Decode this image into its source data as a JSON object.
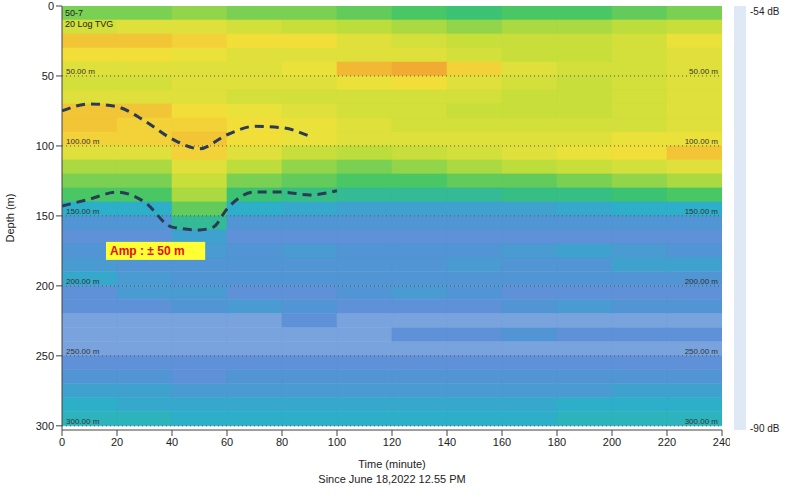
{
  "chart_data": {
    "type": "heatmap",
    "x_label": "Time (minute)",
    "y_label": "Depth (m)",
    "subtitle": "Since June 18,2022 12.55 PM",
    "corner_texts": [
      "50-7",
      "20 Log TVG"
    ],
    "xlim": [
      0,
      240
    ],
    "xticks": [
      0,
      20,
      40,
      60,
      80,
      100,
      120,
      140,
      160,
      180,
      200,
      220,
      240
    ],
    "ylim": [
      0,
      303
    ],
    "yticks": [
      0,
      50,
      100,
      150,
      200,
      250,
      300
    ],
    "depth_markers": [
      {
        "value": 50,
        "label": "50.00 m"
      },
      {
        "value": 100,
        "label": "100.00 m"
      },
      {
        "value": 150,
        "label": "150.00 m"
      },
      {
        "value": 200,
        "label": "200.00 m"
      },
      {
        "value": 250,
        "label": "250.00 m"
      },
      {
        "value": 300,
        "label": "300.00 m"
      }
    ],
    "heatmap": {
      "x_bins": [
        0,
        20,
        40,
        60,
        80,
        100,
        120,
        140,
        160,
        180,
        200,
        220,
        240
      ],
      "y_bins": [
        0,
        10,
        20,
        30,
        40,
        50,
        60,
        70,
        80,
        90,
        100,
        110,
        120,
        130,
        140,
        150,
        160,
        170,
        180,
        190,
        200,
        210,
        220,
        230,
        240,
        250,
        260,
        270,
        280,
        290,
        300
      ],
      "cells": [
        [
          -72,
          -72,
          -71,
          -72,
          -72,
          -73,
          -74,
          -75,
          -74,
          -74,
          -73,
          -72
        ],
        [
          -67,
          -66,
          -66,
          -67,
          -68,
          -69,
          -70,
          -71,
          -70,
          -70,
          -69,
          -68
        ],
        [
          -62,
          -62,
          -63,
          -64,
          -64,
          -66,
          -67,
          -68,
          -68,
          -68,
          -67,
          -65
        ],
        [
          -64,
          -64,
          -65,
          -66,
          -66,
          -66,
          -66,
          -67,
          -68,
          -68,
          -67,
          -66
        ],
        [
          -66,
          -66,
          -66,
          -66,
          -65,
          -61,
          -60,
          -63,
          -66,
          -67,
          -67,
          -66
        ],
        [
          -67,
          -67,
          -66,
          -66,
          -66,
          -65,
          -64,
          -66,
          -67,
          -68,
          -67,
          -66
        ],
        [
          -66,
          -66,
          -66,
          -67,
          -67,
          -67,
          -67,
          -67,
          -68,
          -68,
          -67,
          -66
        ],
        [
          -62,
          -62,
          -64,
          -65,
          -66,
          -67,
          -67,
          -68,
          -68,
          -68,
          -67,
          -66
        ],
        [
          -62,
          -63,
          -63,
          -64,
          -65,
          -66,
          -67,
          -67,
          -67,
          -67,
          -67,
          -66
        ],
        [
          -63,
          -63,
          -62,
          -64,
          -65,
          -66,
          -66,
          -66,
          -66,
          -66,
          -65,
          -65
        ],
        [
          -66,
          -66,
          -63,
          -66,
          -68,
          -69,
          -68,
          -67,
          -66,
          -65,
          -64,
          -62
        ],
        [
          -70,
          -70,
          -66,
          -69,
          -71,
          -72,
          -71,
          -70,
          -69,
          -68,
          -67,
          -66
        ],
        [
          -72,
          -72,
          -68,
          -72,
          -73,
          -74,
          -74,
          -73,
          -73,
          -72,
          -71,
          -70
        ],
        [
          -74,
          -74,
          -70,
          -75,
          -76,
          -77,
          -77,
          -77,
          -76,
          -76,
          -75,
          -74
        ],
        [
          -80,
          -80,
          -73,
          -80,
          -81,
          -82,
          -82,
          -82,
          -82,
          -81,
          -80,
          -80
        ],
        [
          -84,
          -84,
          -77,
          -84,
          -84,
          -84,
          -84,
          -84,
          -84,
          -84,
          -84,
          -84
        ],
        [
          -85,
          -85,
          -82,
          -85,
          -85,
          -85,
          -85,
          -85,
          -85,
          -85,
          -85,
          -85
        ],
        [
          -84,
          -84,
          -83,
          -84,
          -83,
          -84,
          -84,
          -84,
          -83,
          -82,
          -83,
          -84
        ],
        [
          -83,
          -84,
          -84,
          -84,
          -84,
          -84,
          -84,
          -83,
          -84,
          -84,
          -82,
          -82
        ],
        [
          -81,
          -83,
          -84,
          -84,
          -84,
          -84,
          -84,
          -84,
          -84,
          -84,
          -84,
          -84
        ],
        [
          -85,
          -83,
          -83,
          -85,
          -85,
          -84,
          -83,
          -84,
          -85,
          -85,
          -85,
          -85
        ],
        [
          -85,
          -85,
          -84,
          -83,
          -84,
          -85,
          -85,
          -85,
          -84,
          -83,
          -84,
          -84
        ],
        [
          -86,
          -86,
          -86,
          -86,
          -85,
          -86,
          -86,
          -86,
          -86,
          -86,
          -86,
          -86
        ],
        [
          -86,
          -86,
          -86,
          -86,
          -86,
          -86,
          -85,
          -85,
          -84,
          -85,
          -85,
          -85
        ],
        [
          -86,
          -86,
          -86,
          -86,
          -86,
          -86,
          -86,
          -86,
          -86,
          -86,
          -86,
          -86
        ],
        [
          -85,
          -85,
          -85,
          -85,
          -85,
          -85,
          -85,
          -85,
          -85,
          -85,
          -85,
          -85
        ],
        [
          -84,
          -84,
          -85,
          -84,
          -84,
          -84,
          -84,
          -84,
          -84,
          -84,
          -84,
          -84
        ],
        [
          -82,
          -82,
          -83,
          -83,
          -83,
          -83,
          -83,
          -83,
          -83,
          -83,
          -82,
          -82
        ],
        [
          -80,
          -81,
          -81,
          -81,
          -81,
          -81,
          -81,
          -81,
          -81,
          -80,
          -80,
          -80
        ],
        [
          -79,
          -79,
          -80,
          -80,
          -80,
          -80,
          -80,
          -80,
          -80,
          -79,
          -79,
          -79
        ]
      ]
    },
    "color_bar": {
      "range": [
        -90,
        -54
      ],
      "ticks": [
        {
          "value": -54,
          "label": "-54 dB"
        },
        {
          "value": -90,
          "label": "-90 dB"
        }
      ],
      "colors": [
        "#dfe8f5",
        "#5a8fd6",
        "#2ab0c8",
        "#3cc46a",
        "#b8dc3c",
        "#f2e23a",
        "#f2a030",
        "#d02010"
      ]
    },
    "series": [
      {
        "color": "#2b3a55",
        "line_style": "dashed",
        "x": [
          0,
          10,
          20,
          30,
          40,
          50,
          60,
          70,
          80,
          90
        ],
        "values": [
          75,
          70,
          72,
          82,
          95,
          102,
          92,
          86,
          87,
          93
        ]
      },
      {
        "color": "#2b3a55",
        "line_style": "dashed",
        "x": [
          0,
          10,
          20,
          30,
          40,
          50,
          55,
          60,
          70,
          80,
          90,
          100
        ],
        "values": [
          143,
          138,
          133,
          140,
          158,
          160,
          158,
          145,
          133,
          133,
          135,
          132
        ]
      }
    ],
    "annotations": [
      {
        "text": "Amp : ± 50 m",
        "x": 16,
        "y": 175
      }
    ]
  }
}
